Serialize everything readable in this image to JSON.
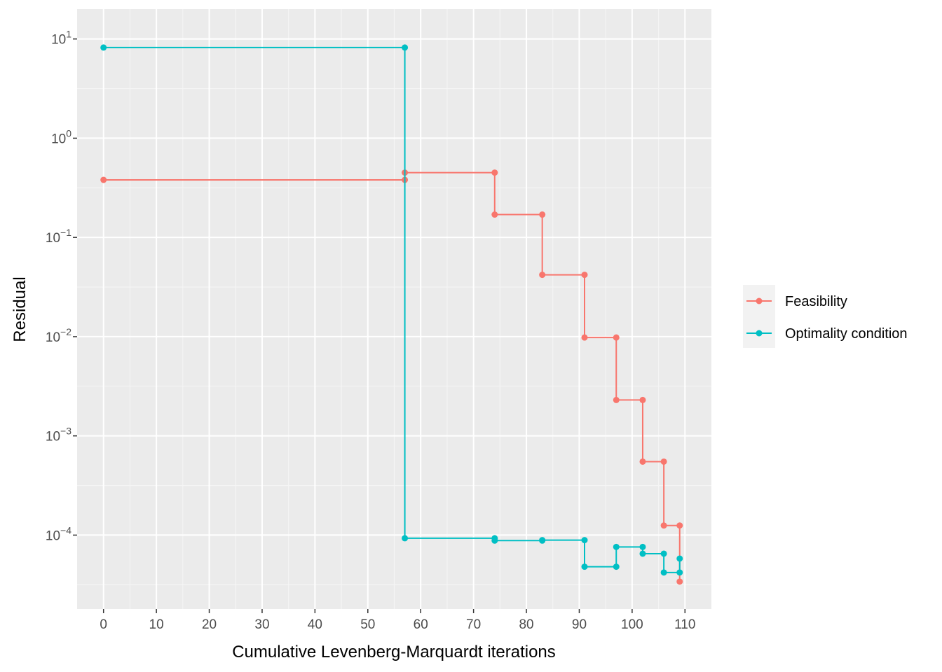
{
  "chart_data": {
    "type": "line",
    "xlabel": "Cumulative Levenberg-Marquardt iterations",
    "ylabel": "Residual",
    "y_scale": "log10",
    "xlim": [
      -5,
      115
    ],
    "ylim": [
      1.8e-05,
      20
    ],
    "x_ticks": [
      0,
      10,
      20,
      30,
      40,
      50,
      60,
      70,
      80,
      90,
      100,
      110
    ],
    "x_tick_labels": [
      "0",
      "10",
      "20",
      "30",
      "40",
      "50",
      "60",
      "70",
      "80",
      "90",
      "100",
      "110"
    ],
    "y_ticks": [
      {
        "value": 10,
        "base": "10",
        "exp": "1"
      },
      {
        "value": 1,
        "base": "10",
        "exp": "0"
      },
      {
        "value": 0.1,
        "base": "10",
        "exp": "−1"
      },
      {
        "value": 0.01,
        "base": "10",
        "exp": "−2"
      },
      {
        "value": 0.001,
        "base": "10",
        "exp": "−3"
      },
      {
        "value": 0.0001,
        "base": "10",
        "exp": "−4"
      }
    ],
    "grid": true,
    "legend_position": "right",
    "series": [
      {
        "name": "Feasibility",
        "color": "#F8766D",
        "points": [
          [
            0,
            0.38
          ],
          [
            57,
            0.38
          ],
          [
            57,
            0.45
          ],
          [
            74,
            0.45
          ],
          [
            74,
            0.17
          ],
          [
            83,
            0.17
          ],
          [
            83,
            0.042
          ],
          [
            91,
            0.042
          ],
          [
            91,
            0.0098
          ],
          [
            97,
            0.0098
          ],
          [
            97,
            0.0023
          ],
          [
            102,
            0.0023
          ],
          [
            102,
            0.00055
          ],
          [
            106,
            0.00055
          ],
          [
            106,
            0.000125
          ],
          [
            109,
            0.000125
          ],
          [
            109,
            3.4e-05
          ]
        ]
      },
      {
        "name": "Optimality condition",
        "color": "#00BFC4",
        "points": [
          [
            0,
            8.2
          ],
          [
            57,
            8.2
          ],
          [
            57,
            9.3e-05
          ],
          [
            74,
            9.3e-05
          ],
          [
            74,
            8.8e-05
          ],
          [
            83,
            8.8e-05
          ],
          [
            83,
            8.9e-05
          ],
          [
            91,
            8.9e-05
          ],
          [
            91,
            4.8e-05
          ],
          [
            97,
            4.8e-05
          ],
          [
            97,
            7.6e-05
          ],
          [
            102,
            7.6e-05
          ],
          [
            102,
            6.5e-05
          ],
          [
            106,
            6.5e-05
          ],
          [
            106,
            4.2e-05
          ],
          [
            109,
            4.2e-05
          ],
          [
            109,
            5.8e-05
          ]
        ]
      }
    ]
  }
}
